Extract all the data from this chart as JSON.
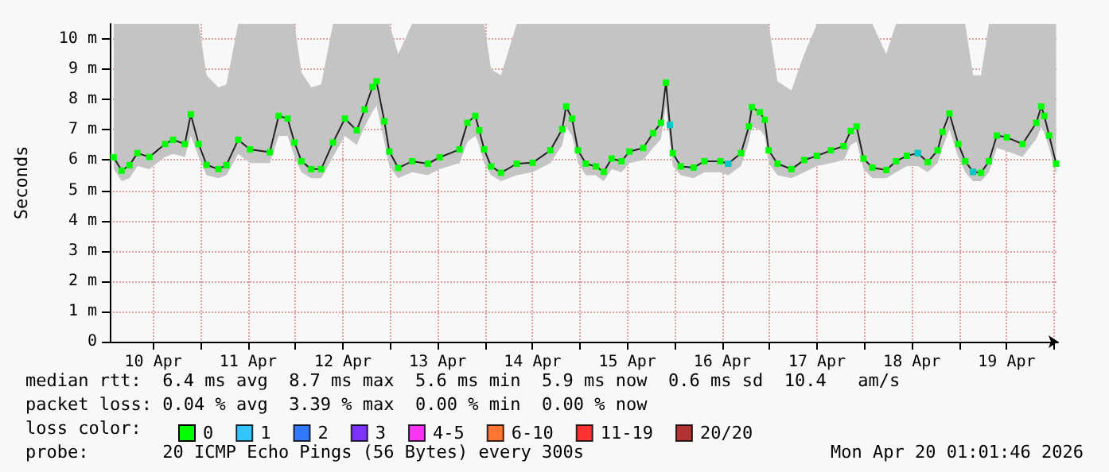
{
  "chart_data": {
    "type": "line",
    "ylabel": "Seconds",
    "legend_title": "loss color:",
    "legend": "bottom",
    "grid": true,
    "marker": "square",
    "xlim": [
      "2026-04-10T01:00",
      "2026-04-20T01:00"
    ],
    "xticks": [
      {
        "value": "2026-04-10T12:00",
        "label": "10 Apr"
      },
      {
        "value": "2026-04-11T00:00",
        "label": null
      },
      {
        "value": "2026-04-11T12:00",
        "label": "11 Apr"
      },
      {
        "value": "2026-04-12T00:00",
        "label": null
      },
      {
        "value": "2026-04-12T12:00",
        "label": "12 Apr"
      },
      {
        "value": "2026-04-13T00:00",
        "label": null
      },
      {
        "value": "2026-04-13T12:00",
        "label": "13 Apr"
      },
      {
        "value": "2026-04-14T00:00",
        "label": null
      },
      {
        "value": "2026-04-14T12:00",
        "label": "14 Apr"
      },
      {
        "value": "2026-04-15T00:00",
        "label": null
      },
      {
        "value": "2026-04-15T12:00",
        "label": "15 Apr"
      },
      {
        "value": "2026-04-16T00:00",
        "label": null
      },
      {
        "value": "2026-04-16T12:00",
        "label": "16 Apr"
      },
      {
        "value": "2026-04-17T00:00",
        "label": null
      },
      {
        "value": "2026-04-17T12:00",
        "label": "17 Apr"
      },
      {
        "value": "2026-04-18T00:00",
        "label": null
      },
      {
        "value": "2026-04-18T12:00",
        "label": "18 Apr"
      },
      {
        "value": "2026-04-19T00:00",
        "label": null
      },
      {
        "value": "2026-04-19T12:00",
        "label": "19 Apr"
      },
      {
        "value": "2026-04-20T00:00",
        "label": null
      }
    ],
    "ylim": [
      0,
      10.5
    ],
    "yticks": [
      0,
      {
        "value": 1,
        "label": "1 m"
      },
      {
        "value": 2,
        "label": "2 m"
      },
      {
        "value": 3,
        "label": "3 m"
      },
      {
        "value": 4,
        "label": "4 m"
      },
      {
        "value": 5,
        "label": "5 m"
      },
      {
        "value": 6,
        "label": "6 m"
      },
      {
        "value": 7,
        "label": "7 m"
      },
      {
        "value": 8,
        "label": "8 m"
      },
      {
        "value": 9,
        "label": "9 m"
      },
      {
        "value": 10,
        "label": "10 m"
      }
    ],
    "series": [
      {
        "name": "0",
        "color": "#00ff00",
        "x": [
          "2026-04-10T02:00",
          "2026-04-10T04:00",
          "2026-04-10T06:00",
          "2026-04-10T08:00",
          "2026-04-10T11:00",
          "2026-04-10T15:00",
          "2026-04-10T17:00",
          "2026-04-10T20:00",
          "2026-04-10T21:30",
          "2026-04-10T23:30",
          "2026-04-11T01:30",
          "2026-04-11T04:30",
          "2026-04-11T06:30",
          "2026-04-11T09:30",
          "2026-04-11T12:30",
          "2026-04-11T17:30",
          "2026-04-11T19:45",
          "2026-04-11T22:00",
          "2026-04-11T23:45",
          "2026-04-12T01:30",
          "2026-04-12T04:00",
          "2026-04-12T06:30",
          "2026-04-12T09:30",
          "2026-04-12T12:30",
          "2026-04-12T15:30",
          "2026-04-12T17:30",
          "2026-04-12T19:30",
          "2026-04-12T20:30",
          "2026-04-12T22:30",
          "2026-04-12T23:45",
          "2026-04-13T02:00",
          "2026-04-13T05:30",
          "2026-04-13T09:30",
          "2026-04-13T12:30",
          "2026-04-13T17:30",
          "2026-04-13T19:30",
          "2026-04-13T21:30",
          "2026-04-13T22:30",
          "2026-04-13T23:45",
          "2026-04-14T01:30",
          "2026-04-14T04:00",
          "2026-04-14T08:00",
          "2026-04-14T12:00",
          "2026-04-14T16:30",
          "2026-04-14T19:30",
          "2026-04-14T20:30",
          "2026-04-14T22:00",
          "2026-04-14T23:30",
          "2026-04-15T01:30",
          "2026-04-15T04:00",
          "2026-04-15T06:00",
          "2026-04-15T08:00",
          "2026-04-15T10:30",
          "2026-04-15T12:30",
          "2026-04-15T16:00",
          "2026-04-15T18:30",
          "2026-04-15T20:30",
          "2026-04-15T21:45",
          "2026-04-15T22:45",
          "2026-04-15T23:30",
          "2026-04-16T01:30",
          "2026-04-16T04:45",
          "2026-04-16T07:30",
          "2026-04-16T11:30",
          "2026-04-16T13:30",
          "2026-04-16T16:45",
          "2026-04-16T18:45",
          "2026-04-16T19:30",
          "2026-04-16T21:30",
          "2026-04-16T22:45",
          "2026-04-16T23:45",
          "2026-04-17T02:00",
          "2026-04-17T05:30",
          "2026-04-17T08:45",
          "2026-04-17T12:00",
          "2026-04-17T15:30",
          "2026-04-17T18:45",
          "2026-04-17T20:30",
          "2026-04-17T22:00",
          "2026-04-17T23:45",
          "2026-04-18T02:00",
          "2026-04-18T05:30",
          "2026-04-18T08:00",
          "2026-04-18T10:45",
          "2026-04-18T13:30",
          "2026-04-18T16:00",
          "2026-04-18T18:30",
          "2026-04-18T19:45",
          "2026-04-18T21:30",
          "2026-04-18T23:45",
          "2026-04-19T01:30",
          "2026-04-19T03:30",
          "2026-04-19T05:30",
          "2026-04-19T07:30",
          "2026-04-19T09:30",
          "2026-04-19T12:00",
          "2026-04-19T16:00",
          "2026-04-19T19:30",
          "2026-04-19T20:45",
          "2026-04-19T21:30",
          "2026-04-19T22:45",
          "2026-04-20T00:30"
        ],
        "values": [
          6.09,
          5.65,
          5.83,
          6.23,
          6.1,
          6.53,
          6.67,
          6.53,
          7.51,
          6.53,
          5.84,
          5.7,
          5.83,
          6.67,
          6.35,
          6.26,
          7.46,
          7.37,
          6.58,
          5.96,
          5.7,
          5.7,
          6.58,
          7.37,
          6.98,
          7.67,
          8.42,
          8.6,
          7.28,
          6.28,
          5.74,
          5.96,
          5.88,
          6.09,
          6.35,
          7.23,
          7.46,
          6.98,
          6.35,
          5.79,
          5.58,
          5.88,
          5.91,
          6.32,
          7.02,
          7.77,
          7.37,
          6.32,
          5.88,
          5.79,
          5.61,
          6.05,
          5.96,
          6.28,
          6.4,
          6.89,
          7.23,
          8.56,
          7.16,
          6.23,
          5.79,
          5.75,
          5.96,
          5.96,
          5.88,
          6.23,
          7.11,
          7.75,
          7.58,
          7.33,
          6.32,
          5.88,
          5.7,
          6.0,
          6.14,
          6.32,
          6.46,
          6.96,
          7.11,
          6.05,
          5.75,
          5.67,
          5.96,
          6.14,
          6.23,
          5.93,
          6.32,
          6.93,
          7.54,
          6.53,
          5.96,
          5.61,
          5.58,
          5.96,
          6.81,
          6.75,
          6.53,
          7.23,
          7.77,
          7.46,
          6.81,
          5.88
        ],
        "lower": [
          5.7,
          5.3,
          5.4,
          5.8,
          5.7,
          6.1,
          6.2,
          6.1,
          6.8,
          6.1,
          5.5,
          5.4,
          5.5,
          6.2,
          5.9,
          5.9,
          6.8,
          6.8,
          6.1,
          5.6,
          5.4,
          5.4,
          6.1,
          6.8,
          6.5,
          7.1,
          7.6,
          7.8,
          6.6,
          5.8,
          5.4,
          5.6,
          5.5,
          5.7,
          5.9,
          6.6,
          6.8,
          6.5,
          5.9,
          5.5,
          5.3,
          5.5,
          5.6,
          5.9,
          6.5,
          7.1,
          6.8,
          5.9,
          5.5,
          5.5,
          5.3,
          5.7,
          5.6,
          5.9,
          6.0,
          6.4,
          6.7,
          7.8,
          6.6,
          5.8,
          5.5,
          5.4,
          5.6,
          5.6,
          5.5,
          5.8,
          6.6,
          7.1,
          7.0,
          6.8,
          5.9,
          5.5,
          5.4,
          5.6,
          5.8,
          5.9,
          6.0,
          6.5,
          6.6,
          5.7,
          5.4,
          5.4,
          5.6,
          5.8,
          5.8,
          5.6,
          5.9,
          6.4,
          7.0,
          6.1,
          5.6,
          5.3,
          5.3,
          5.6,
          6.4,
          6.3,
          6.1,
          6.7,
          7.1,
          6.9,
          6.4,
          5.5
        ],
        "upper": [
          10.5,
          10.5,
          10.5,
          10.5,
          10.5,
          10.5,
          10.5,
          10.5,
          10.5,
          10.5,
          8.8,
          8.4,
          8.5,
          10.5,
          10.5,
          10.5,
          10.5,
          10.5,
          10.5,
          8.9,
          8.4,
          8.5,
          10.5,
          10.5,
          10.5,
          10.5,
          10.5,
          10.5,
          10.5,
          10.5,
          9.5,
          10.5,
          10.5,
          10.5,
          10.5,
          10.5,
          10.5,
          10.5,
          10.5,
          9.0,
          8.8,
          10.5,
          10.5,
          10.5,
          10.5,
          10.5,
          10.5,
          10.5,
          10.5,
          10.5,
          10.5,
          10.5,
          10.5,
          10.5,
          10.5,
          10.5,
          10.5,
          10.5,
          10.5,
          10.5,
          10.5,
          10.5,
          10.5,
          10.5,
          10.5,
          10.5,
          10.5,
          10.5,
          10.5,
          10.5,
          10.5,
          8.6,
          8.3,
          9.5,
          10.5,
          10.5,
          10.5,
          10.5,
          10.5,
          10.5,
          10.5,
          9.5,
          10.5,
          10.5,
          10.5,
          10.5,
          10.5,
          10.5,
          10.5,
          10.5,
          10.5,
          8.8,
          8.8,
          10.5,
          10.5,
          10.5,
          10.5,
          10.5,
          10.5,
          10.5,
          10.5,
          10.5
        ]
      },
      {
        "name": "1",
        "color": "#00b8ff",
        "type": "scatter",
        "x": [
          "2026-04-15T22:45",
          "2026-04-16T13:30",
          "2026-04-18T13:30",
          "2026-04-19T03:30"
        ],
        "values": [
          7.16,
          5.88,
          6.23,
          5.61
        ]
      },
      {
        "name": "2",
        "color": "#0059ff",
        "type": "scatter"
      },
      {
        "name": "3",
        "color": "#5e00ff",
        "type": "scatter"
      },
      {
        "name": "4-5",
        "color": "#ff00f0",
        "type": "scatter"
      },
      {
        "name": "6-10",
        "color": "#ff5500",
        "type": "scatter"
      },
      {
        "name": "11-19",
        "color": "#ff0000",
        "type": "scatter"
      },
      {
        "name": "20/20",
        "color": "#a10000",
        "type": "scatter"
      }
    ],
    "annotations": [
      "median rtt:  6.4 ms avg  8.7 ms max  5.6 ms min  5.9 ms now  0.6 ms sd  10.4   am/s",
      "packet loss: 0.04 % avg  3.39 % max  0.00 % min  0.00 % now",
      "probe:       20 ICMP Echo Pings (56 Bytes) every 300s",
      "Mon Apr 20 01:01:46 2026"
    ]
  }
}
